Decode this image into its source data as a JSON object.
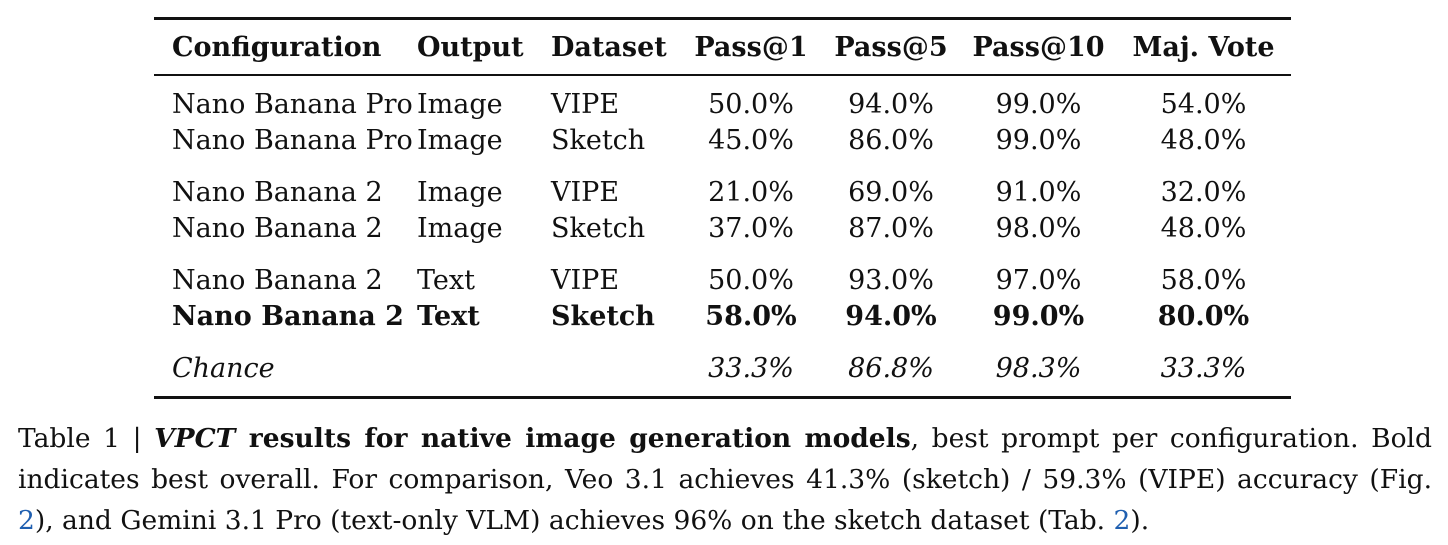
{
  "table": {
    "headers": [
      "Configuration",
      "Output",
      "Dataset",
      "Pass@1",
      "Pass@5",
      "Pass@10",
      "Maj. Vote"
    ],
    "groups": [
      {
        "rows": [
          [
            "Nano Banana Pro",
            "Image",
            "VIPE",
            "50.0%",
            "94.0%",
            "99.0%",
            "54.0%"
          ],
          [
            "Nano Banana Pro",
            "Image",
            "Sketch",
            "45.0%",
            "86.0%",
            "99.0%",
            "48.0%"
          ]
        ]
      },
      {
        "rows": [
          [
            "Nano Banana 2",
            "Image",
            "VIPE",
            "21.0%",
            "69.0%",
            "91.0%",
            "32.0%"
          ],
          [
            "Nano Banana 2",
            "Image",
            "Sketch",
            "37.0%",
            "87.0%",
            "98.0%",
            "48.0%"
          ]
        ]
      },
      {
        "rows": [
          [
            "Nano Banana 2",
            "Text",
            "VIPE",
            "50.0%",
            "93.0%",
            "97.0%",
            "58.0%"
          ],
          [
            "Nano Banana 2",
            "Text",
            "Sketch",
            "58.0%",
            "94.0%",
            "99.0%",
            "80.0%"
          ]
        ]
      }
    ],
    "chance": [
      "Chance",
      "",
      "",
      "33.3%",
      "86.8%",
      "98.3%",
      "33.3%"
    ]
  },
  "caption": {
    "prefix": "Table 1 | ",
    "vpct": "VPCT",
    "bold_rest": " results for native image generation models",
    "text1": ", best prompt per configuration. Bold indicates best overall. For comparison, Veo 3.1 achieves 41.3% (sketch) / 59.3% (VIPE) accuracy (Fig. ",
    "ref1": "2",
    "text2": "), and Gemini 3.1 Pro (text-only VLM) achieves 96% on the sketch dataset (Tab. ",
    "ref2": "2",
    "text3": ")."
  }
}
